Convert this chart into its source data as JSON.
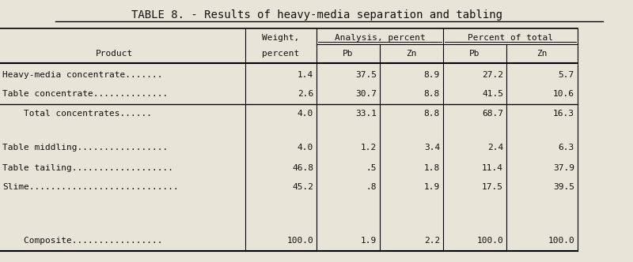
{
  "title": "TABLE 8. - Results of heavy-media separation and tabling",
  "bg_color": "#e8e4d8",
  "text_color": "#111111",
  "col_labels_r1": [
    "Weight,",
    "Analysis, percent",
    "Percent of total"
  ],
  "col_labels_r2": [
    "Product",
    "percent",
    "Pb",
    "Zn",
    "Pb",
    "Zn"
  ],
  "rows": [
    [
      "Heavy-media concentrate.......",
      "1.4",
      "37.5",
      "8.9",
      "27.2",
      "5.7"
    ],
    [
      "Table concentrate..............",
      "2.6",
      "30.7",
      "8.8",
      "41.5",
      "10.6"
    ],
    [
      "    Total concentrates......",
      "4.0",
      "33.1",
      "8.8",
      "68.7",
      "16.3"
    ],
    [
      "",
      "",
      "",
      "",
      "",
      ""
    ],
    [
      "Table middling.................",
      "4.0",
      "1.2",
      "3.4",
      "2.4",
      "6.3"
    ],
    [
      "Table tailing...................",
      "46.8",
      ".5",
      "1.8",
      "11.4",
      "37.9"
    ],
    [
      "Slime............................",
      "45.2",
      ".8",
      "1.9",
      "17.5",
      "39.5"
    ],
    [
      "    Composite.................",
      "100.0",
      "1.9",
      "2.2",
      "100.0",
      "100.0"
    ]
  ],
  "fs_title": 10,
  "fs_header": 8,
  "fs_data": 8
}
